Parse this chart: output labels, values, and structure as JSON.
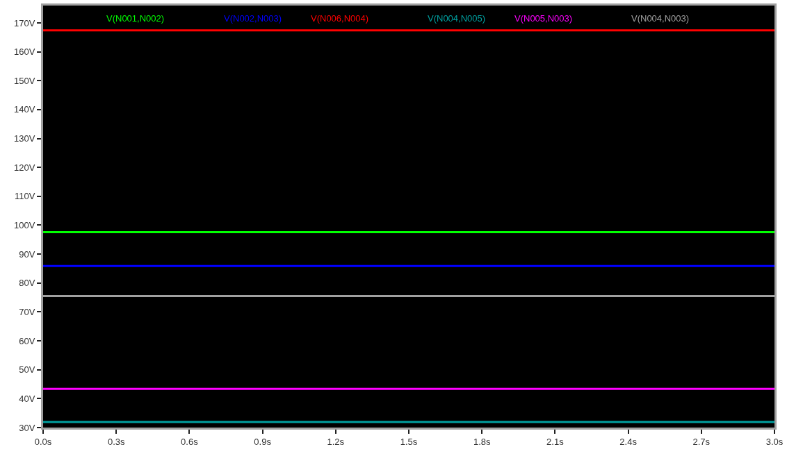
{
  "chart_data": {
    "type": "line",
    "x": [
      0,
      3
    ],
    "series": [
      {
        "name": "V(N001,N002)",
        "color": "#00ff00",
        "values": [
          97.6,
          97.6
        ]
      },
      {
        "name": "V(N002,N003)",
        "color": "#0000ff",
        "values": [
          85.9,
          85.9
        ]
      },
      {
        "name": "V(N006,N004)",
        "color": "#ff0000",
        "values": [
          167.4,
          167.4
        ]
      },
      {
        "name": "V(N004,N005)",
        "color": "#00a0a0",
        "values": [
          31.9,
          31.9
        ]
      },
      {
        "name": "V(N005,N003)",
        "color": "#ff00ff",
        "values": [
          43.4,
          43.4
        ]
      },
      {
        "name": "V(N004,N003)",
        "color": "#a0a0a0",
        "values": [
          75.5,
          75.5
        ]
      }
    ],
    "xlim": [
      0,
      3
    ],
    "xticks": [
      {
        "value": 0,
        "label": "0.0s"
      },
      {
        "value": 0.3,
        "label": "0.3s"
      },
      {
        "value": 0.6,
        "label": "0.6s"
      },
      {
        "value": 0.9,
        "label": "0.9s"
      },
      {
        "value": 1.2,
        "label": "1.2s"
      },
      {
        "value": 1.5,
        "label": "1.5s"
      },
      {
        "value": 1.8,
        "label": "1.8s"
      },
      {
        "value": 2.1,
        "label": "2.1s"
      },
      {
        "value": 2.4,
        "label": "2.4s"
      },
      {
        "value": 2.7,
        "label": "2.7s"
      },
      {
        "value": 3.0,
        "label": "3.0s"
      }
    ],
    "ylim": [
      30,
      176
    ],
    "yticks": [
      {
        "value": 30,
        "label": "30V"
      },
      {
        "value": 40,
        "label": "40V"
      },
      {
        "value": 50,
        "label": "50V"
      },
      {
        "value": 60,
        "label": "60V"
      },
      {
        "value": 70,
        "label": "70V"
      },
      {
        "value": 80,
        "label": "80V"
      },
      {
        "value": 90,
        "label": "90V"
      },
      {
        "value": 100,
        "label": "100V"
      },
      {
        "value": 110,
        "label": "110V"
      },
      {
        "value": 120,
        "label": "120V"
      },
      {
        "value": 130,
        "label": "130V"
      },
      {
        "value": 140,
        "label": "140V"
      },
      {
        "value": 150,
        "label": "150V"
      },
      {
        "value": 160,
        "label": "160V"
      },
      {
        "value": 170,
        "label": "170V"
      }
    ],
    "grid": false,
    "legend": "top",
    "marker": "none",
    "line_style": "solid"
  }
}
